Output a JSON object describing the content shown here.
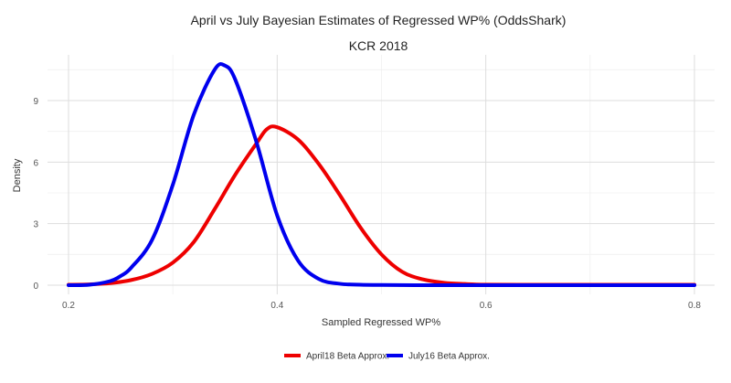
{
  "chart_data": {
    "type": "line",
    "title": "April vs July Bayesian Estimates of Regressed WP% (OddsShark)",
    "subtitle": "KCR  2018",
    "xlabel": "Sampled Regressed WP%",
    "ylabel": "Density",
    "xlim": [
      0.2,
      0.8
    ],
    "ylim": [
      0,
      11.2
    ],
    "xticks": [
      0.2,
      0.4,
      0.6,
      0.8
    ],
    "xtick_labels": [
      "0.2",
      "0.4",
      "0.6",
      "0.8"
    ],
    "yticks": [
      0,
      3,
      6,
      9
    ],
    "ytick_labels": [
      "0",
      "3",
      "6",
      "9"
    ],
    "grid": true,
    "legend_position": "bottom",
    "series": [
      {
        "name": "April18 Beta Approx.",
        "color": "#ee0000",
        "x": [
          0.2,
          0.22,
          0.24,
          0.26,
          0.28,
          0.3,
          0.32,
          0.34,
          0.36,
          0.38,
          0.39,
          0.4,
          0.42,
          0.44,
          0.46,
          0.48,
          0.5,
          0.52,
          0.54,
          0.56,
          0.58,
          0.6,
          0.65,
          0.7,
          0.75,
          0.8
        ],
        "y": [
          0.02,
          0.04,
          0.1,
          0.25,
          0.55,
          1.1,
          2.1,
          3.7,
          5.4,
          6.9,
          7.6,
          7.7,
          7.1,
          5.9,
          4.4,
          2.8,
          1.5,
          0.65,
          0.28,
          0.12,
          0.06,
          0.03,
          0.02,
          0.02,
          0.02,
          0.02
        ]
      },
      {
        "name": "July16 Beta Approx.",
        "color": "#0000ee",
        "x": [
          0.2,
          0.22,
          0.24,
          0.25,
          0.26,
          0.28,
          0.3,
          0.32,
          0.34,
          0.35,
          0.36,
          0.38,
          0.4,
          0.42,
          0.44,
          0.46,
          0.48,
          0.5,
          0.55,
          0.6,
          0.7,
          0.8
        ],
        "y": [
          0.0,
          0.02,
          0.2,
          0.45,
          0.85,
          2.2,
          4.9,
          8.3,
          10.5,
          10.7,
          10.0,
          7.0,
          3.4,
          1.2,
          0.3,
          0.07,
          0.02,
          0.01,
          0.0,
          0.0,
          0.0,
          0.0
        ]
      }
    ]
  }
}
